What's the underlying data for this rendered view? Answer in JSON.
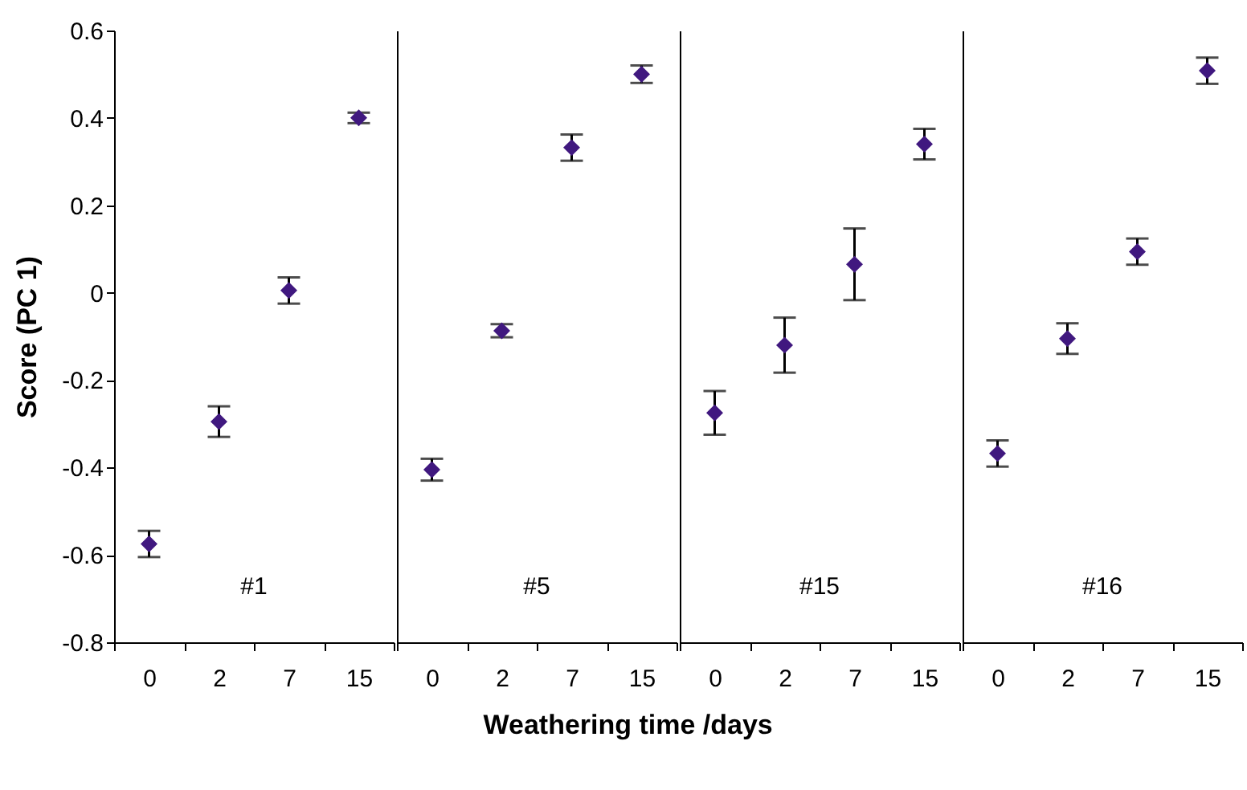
{
  "chart_data": [
    {
      "type": "scatter",
      "ylabel": "Score (PC 1)",
      "xlabel": "Weathering time /days",
      "categories": [
        "0",
        "2",
        "7",
        "15"
      ],
      "series": [
        {
          "color": "#40187f",
          "values": [
            -0.575,
            -0.295,
            0.005,
            0.4
          ],
          "errors": [
            0.03,
            0.035,
            0.03,
            0.012
          ]
        }
      ],
      "annotations": [
        "#1"
      ],
      "ylim": [
        -0.8,
        0.6
      ],
      "yticks": [
        -0.8,
        -0.6,
        -0.4,
        -0.2,
        0,
        0.2,
        0.4,
        0.6
      ],
      "marker": "diamond",
      "grid": false
    },
    {
      "type": "scatter",
      "categories": [
        "0",
        "2",
        "7",
        "15"
      ],
      "series": [
        {
          "color": "#40187f",
          "values": [
            -0.405,
            -0.087,
            0.332,
            0.5
          ],
          "errors": [
            0.025,
            0.015,
            0.03,
            0.02
          ]
        }
      ],
      "annotations": [
        "#5"
      ],
      "ylim": [
        -0.8,
        0.6
      ],
      "yticks": [
        -0.8,
        -0.6,
        -0.4,
        -0.2,
        0,
        0.2,
        0.4,
        0.6
      ],
      "tick_labels": "x",
      "marker": "diamond",
      "grid": false
    },
    {
      "type": "scatter",
      "categories": [
        "0",
        "2",
        "7",
        "15"
      ],
      "series": [
        {
          "color": "#40187f",
          "values": [
            -0.275,
            -0.12,
            0.065,
            0.34
          ],
          "errors": [
            0.05,
            0.063,
            0.082,
            0.035
          ]
        }
      ],
      "annotations": [
        "#15"
      ],
      "ylim": [
        -0.8,
        0.6
      ],
      "yticks": [
        -0.8,
        -0.6,
        -0.4,
        -0.2,
        0,
        0.2,
        0.4,
        0.6
      ],
      "tick_labels": "x",
      "marker": "diamond",
      "grid": false
    },
    {
      "type": "scatter",
      "categories": [
        "0",
        "2",
        "7",
        "15"
      ],
      "series": [
        {
          "color": "#40187f",
          "values": [
            -0.368,
            -0.105,
            0.094,
            0.508
          ],
          "errors": [
            0.03,
            0.035,
            0.03,
            0.03
          ]
        }
      ],
      "annotations": [
        "#16"
      ],
      "ylim": [
        -0.8,
        0.6
      ],
      "yticks": [
        -0.8,
        -0.6,
        -0.4,
        -0.2,
        0,
        0.2,
        0.4,
        0.6
      ],
      "tick_labels": "x",
      "marker": "diamond",
      "grid": false
    }
  ]
}
